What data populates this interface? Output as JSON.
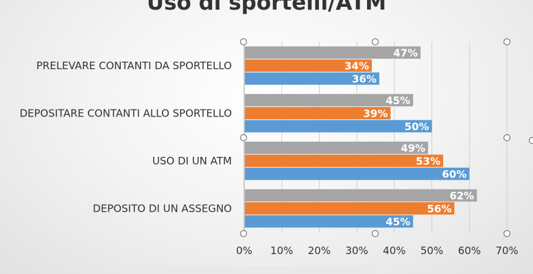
{
  "chart_data": {
    "type": "bar",
    "orientation": "horizontal",
    "title": "Uso di sportelli/ATM",
    "categories": [
      "PRELEVARE CONTANTI DA SPORTELLO",
      "DEPOSITARE CONTANTI ALLO SPORTELLO",
      "USO DI UN ATM",
      "DEPOSITO DI UN ASSEGNO"
    ],
    "series": [
      {
        "values": [
          47,
          45,
          49,
          62
        ],
        "color": "#a5a5a5"
      },
      {
        "values": [
          34,
          39,
          53,
          56
        ],
        "color": "#ed7d31"
      },
      {
        "values": [
          36,
          50,
          60,
          45
        ],
        "color": "#5b9bd5"
      }
    ],
    "x_ticks": [
      "0%",
      "10%",
      "20%",
      "30%",
      "40%",
      "50%",
      "60%",
      "70%"
    ],
    "xlim": [
      0,
      70
    ],
    "value_suffix": "%",
    "grid": true,
    "xlabel": "",
    "ylabel": ""
  }
}
